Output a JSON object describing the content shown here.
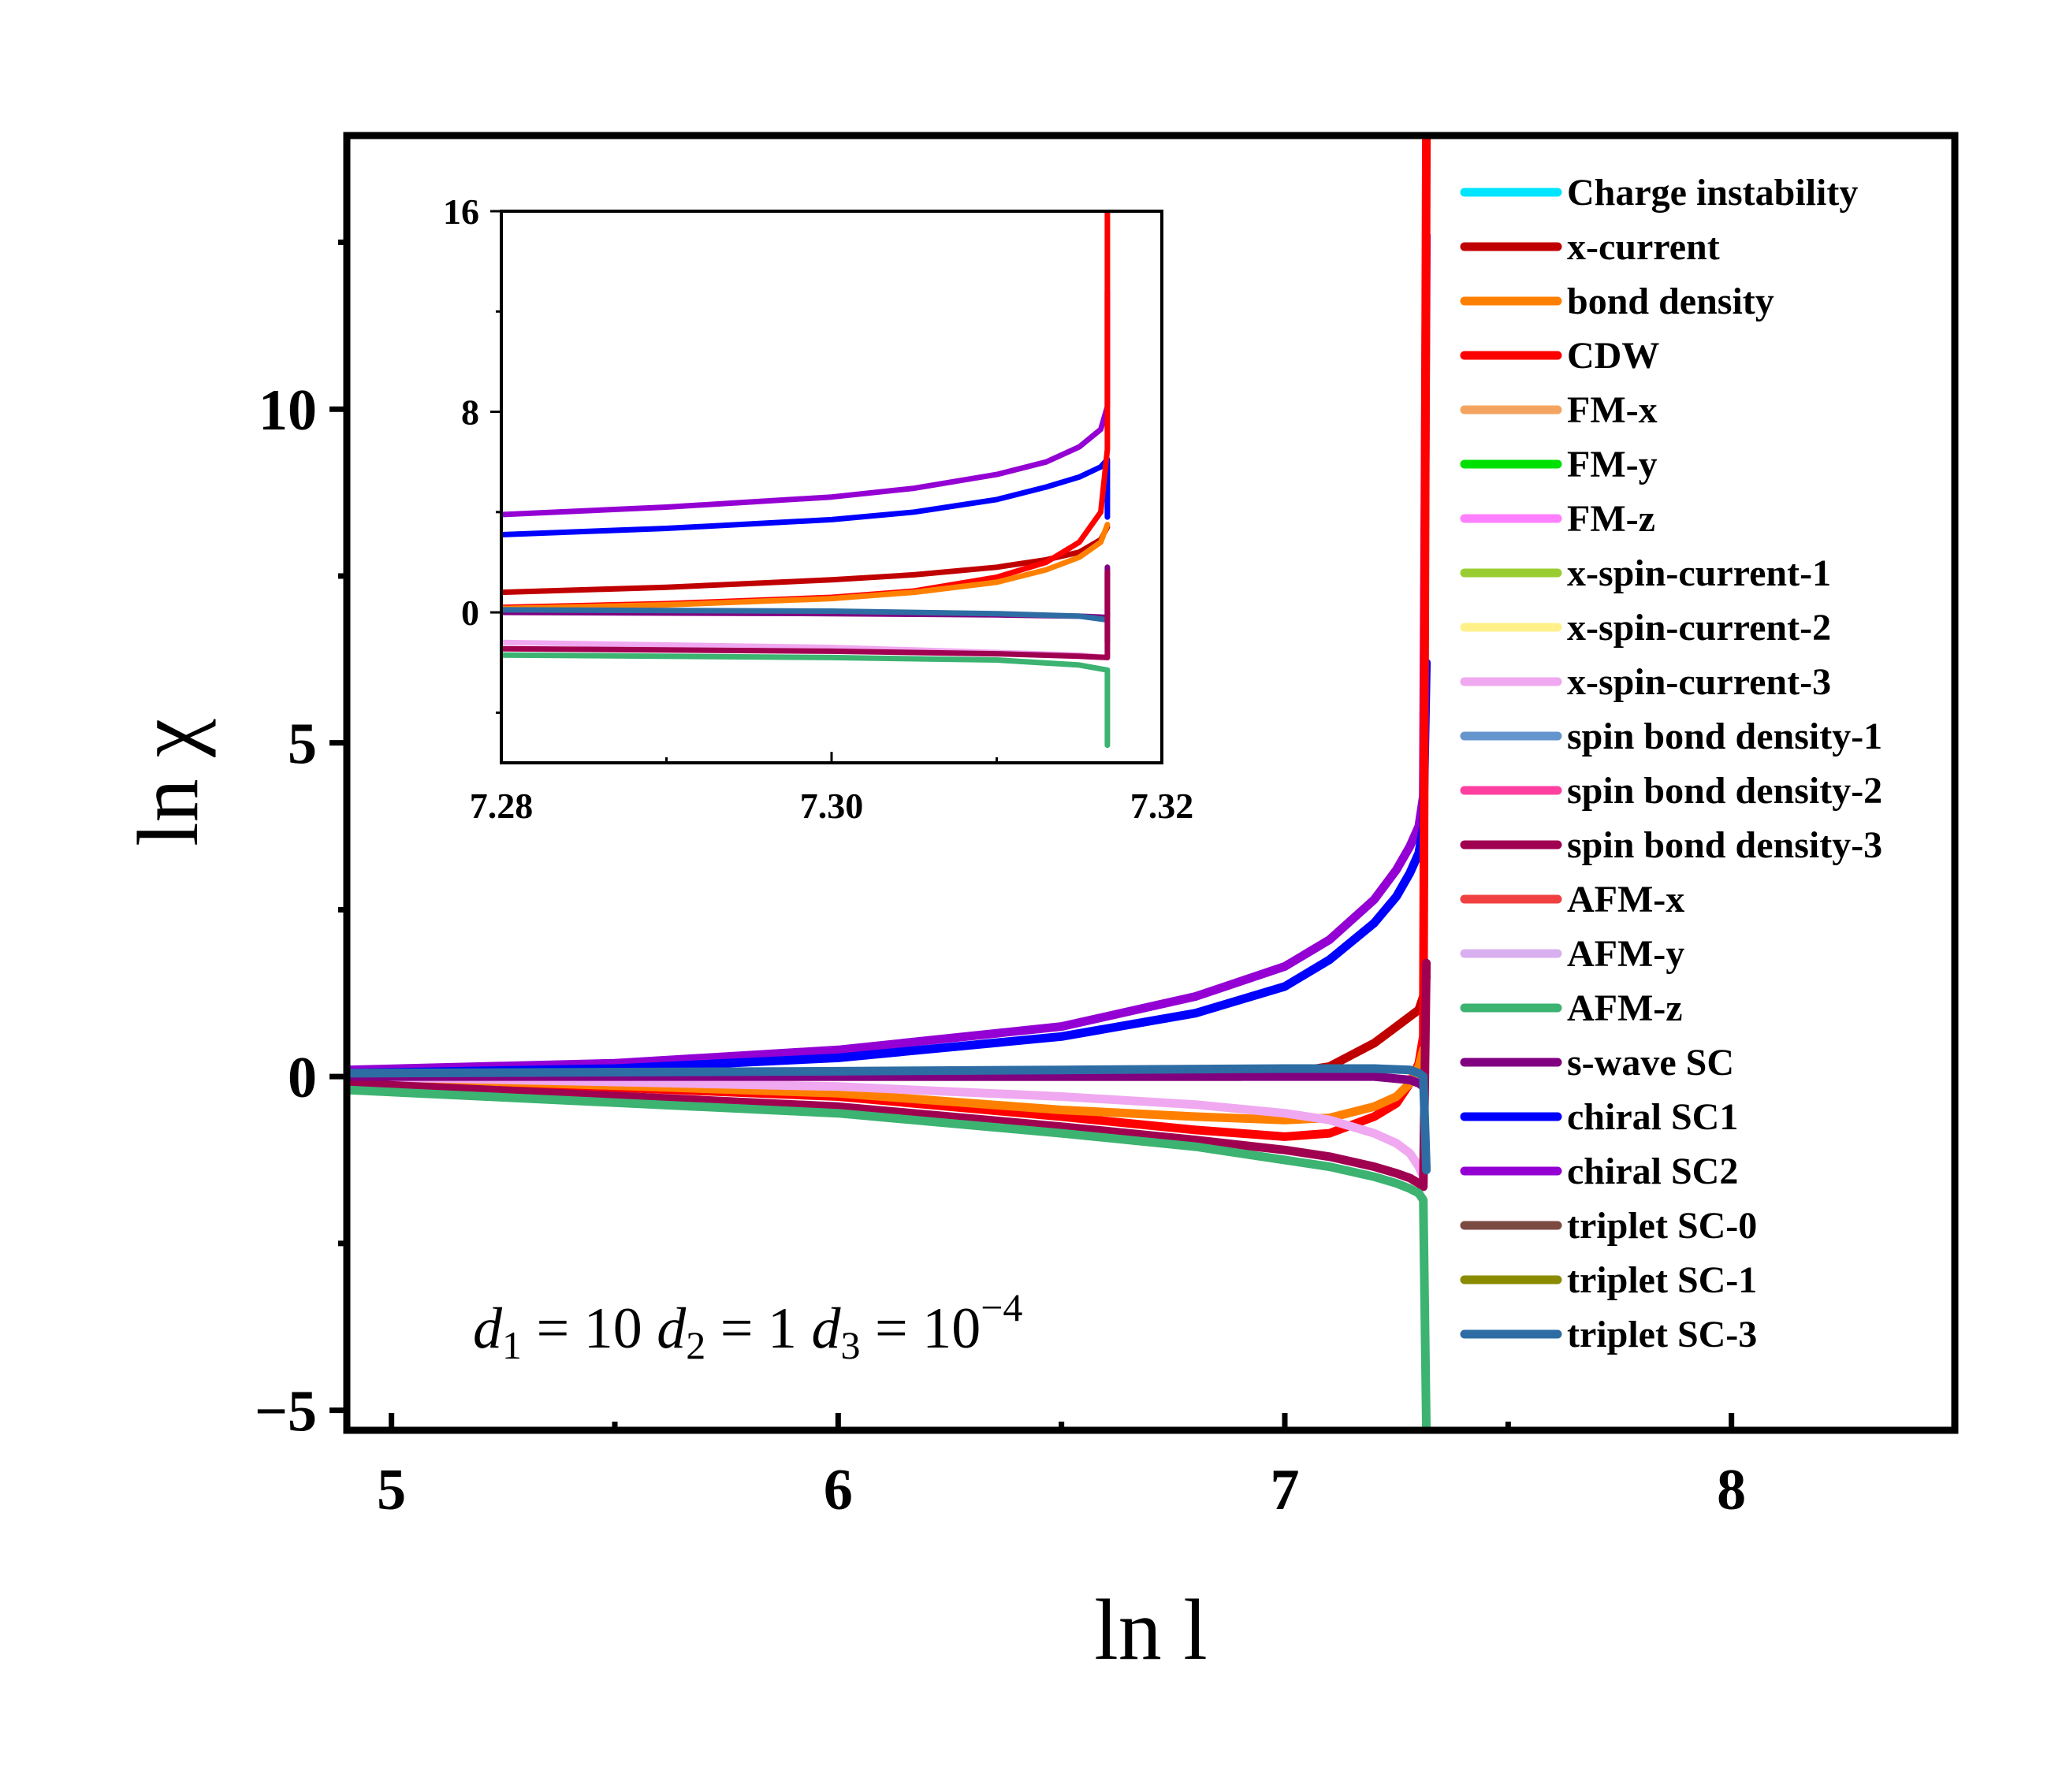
{
  "chart_data": {
    "type": "line",
    "xlabel": "ln l",
    "ylabel": "ln χ",
    "xlim": [
      4.9,
      8.5
    ],
    "ylim": [
      -5.3,
      14.1
    ],
    "xticks": [
      5,
      6,
      7,
      8
    ],
    "xtick_labels": [
      "5",
      "6",
      "7",
      "8"
    ],
    "yticks": [
      -5,
      0,
      5,
      10
    ],
    "ytick_labels": [
      "−5",
      "0",
      "5",
      "10"
    ],
    "divergence_x": 7.317,
    "annotation": {
      "parts": [
        "d",
        "1",
        " = 10 ",
        "d",
        "2",
        " = 1 ",
        "d",
        "3",
        " = 10",
        "−4"
      ]
    },
    "legend": [
      {
        "label": "Charge instability",
        "color": "#00e5ff"
      },
      {
        "label": "x-current",
        "color": "#c00000"
      },
      {
        "label": "bond density",
        "color": "#ff8000"
      },
      {
        "label": "CDW",
        "color": "#ff0000"
      },
      {
        "label": "FM-x",
        "color": "#f4a460"
      },
      {
        "label": "FM-y",
        "color": "#00e000"
      },
      {
        "label": "FM-z",
        "color": "#ff80ff"
      },
      {
        "label": "x-spin-current-1",
        "color": "#9acd32"
      },
      {
        "label": "x-spin-current-2",
        "color": "#fff08a"
      },
      {
        "label": "x-spin-current-3",
        "color": "#f0a8f0"
      },
      {
        "label": "spin bond density-1",
        "color": "#6495cd"
      },
      {
        "label": "spin bond density-2",
        "color": "#ff40a0"
      },
      {
        "label": "spin bond density-3",
        "color": "#a00050"
      },
      {
        "label": "AFM-x",
        "color": "#f04040"
      },
      {
        "label": "AFM-y",
        "color": "#d8b0f0"
      },
      {
        "label": "AFM-z",
        "color": "#3cb371"
      },
      {
        "label": "s-wave SC",
        "color": "#800080"
      },
      {
        "label": "chiral SC1",
        "color": "#0000ff"
      },
      {
        "label": "chiral SC2",
        "color": "#9400d3"
      },
      {
        "label": "triplet SC-0",
        "color": "#7b4a40"
      },
      {
        "label": "triplet SC-1",
        "color": "#8b8b00"
      },
      {
        "label": "triplet SC-3",
        "color": "#2e6da4"
      }
    ],
    "series": [
      {
        "name": "chiral SC2",
        "color": "#9400d3",
        "x": [
          4.9,
          5.5,
          6.0,
          6.5,
          6.8,
          7.0,
          7.1,
          7.2,
          7.25,
          7.28,
          7.3,
          7.31
        ],
        "y": [
          0.1,
          0.2,
          0.4,
          0.75,
          1.2,
          1.65,
          2.05,
          2.65,
          3.1,
          3.45,
          3.75,
          4.2
        ],
        "end_y": 12.6
      },
      {
        "name": "chiral SC1",
        "color": "#0000ff",
        "x": [
          4.9,
          5.5,
          6.0,
          6.5,
          6.8,
          7.0,
          7.1,
          7.2,
          7.25,
          7.28,
          7.3,
          7.31
        ],
        "y": [
          0.05,
          0.12,
          0.28,
          0.6,
          0.95,
          1.35,
          1.75,
          2.3,
          2.7,
          3.05,
          3.35,
          3.75
        ],
        "end_y": 6.2
      },
      {
        "name": "x-current",
        "color": "#c00000",
        "x": [
          4.9,
          6.0,
          6.5,
          6.9,
          7.0,
          7.1,
          7.2,
          7.25,
          7.28,
          7.3,
          7.31
        ],
        "y": [
          0.0,
          0.0,
          0.0,
          0.0,
          0.05,
          0.15,
          0.5,
          0.75,
          0.9,
          1.0,
          1.2
        ],
        "end_y": 1.5
      },
      {
        "name": "CDW",
        "color": "#ff0000",
        "x": [
          4.9,
          6.0,
          6.5,
          6.8,
          7.0,
          7.1,
          7.2,
          7.25,
          7.28,
          7.3,
          7.31
        ],
        "y": [
          0.0,
          -0.3,
          -0.6,
          -0.8,
          -0.9,
          -0.85,
          -0.6,
          -0.4,
          -0.1,
          0.2,
          0.6
        ],
        "end_y": 14.1
      },
      {
        "name": "bond density",
        "color": "#ff8000",
        "x": [
          4.9,
          6.0,
          6.5,
          6.8,
          7.0,
          7.1,
          7.2,
          7.25,
          7.28,
          7.3,
          7.31
        ],
        "y": [
          0.0,
          -0.25,
          -0.5,
          -0.6,
          -0.65,
          -0.62,
          -0.45,
          -0.3,
          -0.1,
          0.15,
          0.4
        ],
        "end_y": 0.4
      },
      {
        "name": "x-spin-current-3",
        "color": "#f0a8f0",
        "x": [
          4.9,
          6.0,
          6.5,
          6.8,
          7.0,
          7.1,
          7.2,
          7.25,
          7.28,
          7.3,
          7.31
        ],
        "y": [
          0.0,
          -0.15,
          -0.3,
          -0.42,
          -0.55,
          -0.65,
          -0.85,
          -1.0,
          -1.15,
          -1.35,
          -1.5
        ],
        "end_y": -1.5
      },
      {
        "name": "spin bond density-3",
        "color": "#a00050",
        "x": [
          4.9,
          6.0,
          6.5,
          6.8,
          7.0,
          7.1,
          7.2,
          7.25,
          7.28,
          7.3,
          7.31
        ],
        "y": [
          -0.1,
          -0.45,
          -0.75,
          -0.95,
          -1.1,
          -1.2,
          -1.35,
          -1.45,
          -1.52,
          -1.6,
          -1.65
        ],
        "end_y": 1.7
      },
      {
        "name": "AFM-z",
        "color": "#3cb371",
        "x": [
          4.9,
          6.0,
          6.5,
          6.8,
          7.0,
          7.1,
          7.2,
          7.25,
          7.28,
          7.3,
          7.31
        ],
        "y": [
          -0.2,
          -0.55,
          -0.85,
          -1.05,
          -1.25,
          -1.35,
          -1.5,
          -1.6,
          -1.68,
          -1.75,
          -1.85
        ],
        "end_y": -5.3
      },
      {
        "name": "s-wave SC",
        "color": "#800080",
        "x": [
          4.9,
          6.0,
          6.5,
          7.0,
          7.2,
          7.28,
          7.3,
          7.31
        ],
        "y": [
          0.0,
          0.0,
          0.0,
          0.0,
          0.0,
          -0.05,
          -0.1,
          -0.15
        ],
        "end_y": -0.15
      },
      {
        "name": "triplet SC-3",
        "color": "#2e6da4",
        "x": [
          4.9,
          6.0,
          6.5,
          7.0,
          7.2,
          7.28,
          7.3,
          7.31
        ],
        "y": [
          0.05,
          0.08,
          0.1,
          0.12,
          0.12,
          0.1,
          0.05,
          0.0
        ],
        "end_y": -1.4
      }
    ],
    "inset": {
      "xlim": [
        7.28,
        7.32
      ],
      "ylim": [
        -6,
        16
      ],
      "xticks": [
        7.28,
        7.3,
        7.32
      ],
      "xtick_labels": [
        "7.28",
        "7.30",
        "7.32"
      ],
      "yticks": [
        0,
        8,
        16
      ],
      "ytick_labels": [
        "0",
        "8",
        "16"
      ],
      "divergence_x": 7.3167,
      "series": [
        {
          "name": "chiral SC2",
          "color": "#9400d3",
          "x": [
            7.28,
            7.29,
            7.3,
            7.305,
            7.31,
            7.313,
            7.315,
            7.3163,
            7.3167
          ],
          "y": [
            3.9,
            4.2,
            4.6,
            4.95,
            5.5,
            6.0,
            6.6,
            7.3,
            8.2
          ],
          "end_y": 12.8
        },
        {
          "name": "chiral SC1",
          "color": "#0000ff",
          "x": [
            7.28,
            7.29,
            7.3,
            7.305,
            7.31,
            7.313,
            7.315,
            7.3163,
            7.3167
          ],
          "y": [
            3.1,
            3.35,
            3.7,
            4.0,
            4.5,
            5.0,
            5.4,
            5.8,
            6.1
          ],
          "end_y": 3.8
        },
        {
          "name": "x-current",
          "color": "#c00000",
          "x": [
            7.28,
            7.29,
            7.3,
            7.305,
            7.31,
            7.313,
            7.315,
            7.3163,
            7.3167
          ],
          "y": [
            0.8,
            1.0,
            1.3,
            1.5,
            1.8,
            2.1,
            2.4,
            2.9,
            3.4
          ],
          "end_y": 3.4
        },
        {
          "name": "CDW",
          "color": "#ff0000",
          "x": [
            7.28,
            7.29,
            7.3,
            7.305,
            7.31,
            7.313,
            7.315,
            7.3163,
            7.3167
          ],
          "y": [
            0.2,
            0.35,
            0.6,
            0.85,
            1.4,
            2.0,
            2.8,
            4.0,
            6.5
          ],
          "end_y": 16.0
        },
        {
          "name": "bond density",
          "color": "#ff8000",
          "x": [
            7.28,
            7.29,
            7.3,
            7.305,
            7.31,
            7.313,
            7.315,
            7.3163,
            7.3167
          ],
          "y": [
            0.15,
            0.3,
            0.55,
            0.8,
            1.2,
            1.7,
            2.2,
            2.8,
            3.5
          ],
          "end_y": 3.5
        },
        {
          "name": "s-wave SC",
          "color": "#800080",
          "x": [
            7.28,
            7.3,
            7.31,
            7.315,
            7.3167
          ],
          "y": [
            0.0,
            -0.05,
            -0.1,
            -0.15,
            -0.2
          ],
          "end_y": 1.8
        },
        {
          "name": "triplet SC-3",
          "color": "#2e6da4",
          "x": [
            7.28,
            7.3,
            7.31,
            7.315,
            7.3167
          ],
          "y": [
            0.1,
            0.05,
            -0.05,
            -0.15,
            -0.3
          ],
          "end_y": -1.2
        },
        {
          "name": "x-spin-current-3",
          "color": "#f0a8f0",
          "x": [
            7.28,
            7.3,
            7.31,
            7.315,
            7.3167
          ],
          "y": [
            -1.2,
            -1.4,
            -1.6,
            -1.7,
            -1.8
          ],
          "end_y": -1.8
        },
        {
          "name": "spin bond density-3",
          "color": "#a00050",
          "x": [
            7.28,
            7.3,
            7.31,
            7.315,
            7.3167
          ],
          "y": [
            -1.45,
            -1.55,
            -1.65,
            -1.75,
            -1.8
          ],
          "end_y": 1.6
        },
        {
          "name": "AFM-z",
          "color": "#3cb371",
          "x": [
            7.28,
            7.3,
            7.31,
            7.315,
            7.3167
          ],
          "y": [
            -1.7,
            -1.8,
            -1.9,
            -2.1,
            -2.3
          ],
          "end_y": -5.3
        }
      ]
    }
  }
}
